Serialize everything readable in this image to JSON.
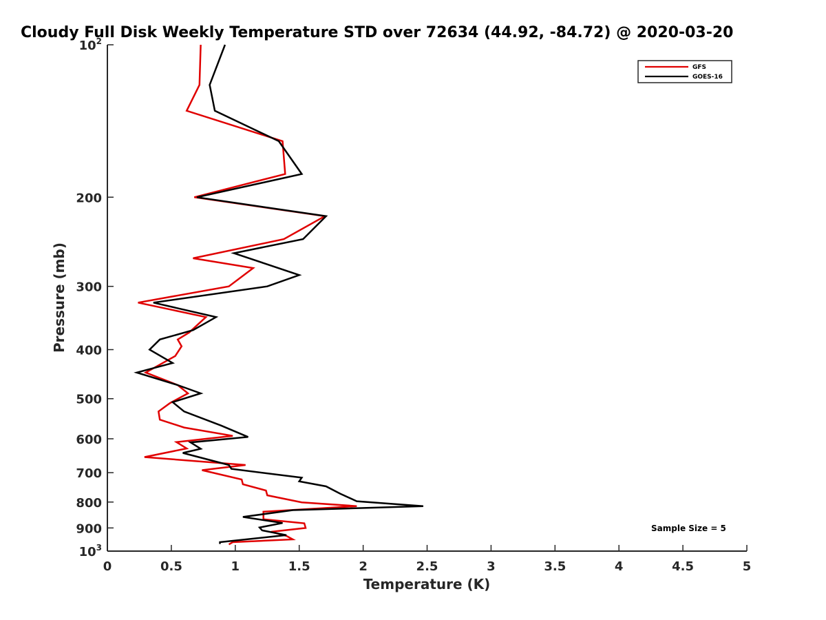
{
  "chart_data": {
    "type": "line",
    "title": "Cloudy Full Disk Weekly Temperature STD over 72634 (44.92, -84.72) @ 2020-03-20",
    "xlabel": "Temperature (K)",
    "ylabel": "Pressure (mb)",
    "xlim": [
      0,
      5
    ],
    "ylim": [
      100,
      1000
    ],
    "y_scale": "log",
    "y_reversed": true,
    "xticks": [
      0,
      0.5,
      1,
      1.5,
      2,
      2.5,
      3,
      3.5,
      4,
      4.5,
      5
    ],
    "xtick_labels": [
      "0",
      "0.5",
      "1",
      "1.5",
      "2",
      "2.5",
      "3",
      "3.5",
      "4",
      "4.5",
      "5"
    ],
    "yticks": [
      {
        "value": 100,
        "base": "10",
        "exp": "2"
      },
      {
        "value": 200,
        "label": "200"
      },
      {
        "value": 300,
        "label": "300"
      },
      {
        "value": 400,
        "label": "400"
      },
      {
        "value": 500,
        "label": "500"
      },
      {
        "value": 600,
        "label": "600"
      },
      {
        "value": 700,
        "label": "700"
      },
      {
        "value": 800,
        "label": "800"
      },
      {
        "value": 900,
        "label": "900"
      },
      {
        "value": 1000,
        "base": "10",
        "exp": "3"
      }
    ],
    "grid": false,
    "legend_position": "top-right",
    "annotation": "Sample Size = 5",
    "series": [
      {
        "name": "GFS",
        "color": "#e00000",
        "points": [
          [
            0.73,
            100
          ],
          [
            0.72,
            120
          ],
          [
            0.62,
            135
          ],
          [
            1.37,
            155
          ],
          [
            1.39,
            180
          ],
          [
            0.68,
            200
          ],
          [
            1.7,
            218
          ],
          [
            1.38,
            242
          ],
          [
            0.67,
            264
          ],
          [
            1.14,
            276
          ],
          [
            0.95,
            300
          ],
          [
            0.24,
            323
          ],
          [
            0.77,
            345
          ],
          [
            0.64,
            370
          ],
          [
            0.55,
            382
          ],
          [
            0.58,
            394
          ],
          [
            0.53,
            412
          ],
          [
            0.3,
            444
          ],
          [
            0.55,
            470
          ],
          [
            0.63,
            488
          ],
          [
            0.49,
            510
          ],
          [
            0.4,
            530
          ],
          [
            0.41,
            550
          ],
          [
            0.6,
            570
          ],
          [
            0.98,
            592
          ],
          [
            0.54,
            609
          ],
          [
            0.62,
            627
          ],
          [
            0.29,
            652
          ],
          [
            1.08,
            676
          ],
          [
            0.74,
            692
          ],
          [
            1.05,
            722
          ],
          [
            1.06,
            738
          ],
          [
            1.24,
            759
          ],
          [
            1.25,
            776
          ],
          [
            1.52,
            801
          ],
          [
            1.95,
            815
          ],
          [
            1.22,
            836
          ],
          [
            1.22,
            865
          ],
          [
            1.54,
            881
          ],
          [
            1.55,
            900
          ],
          [
            1.28,
            916
          ],
          [
            1.4,
            933
          ],
          [
            1.45,
            948
          ],
          [
            0.98,
            960
          ],
          [
            0.95,
            970
          ]
        ]
      },
      {
        "name": "GOES-16",
        "color": "#000000",
        "points": [
          [
            0.92,
            100
          ],
          [
            0.8,
            120
          ],
          [
            0.84,
            135
          ],
          [
            1.34,
            155
          ],
          [
            1.52,
            180
          ],
          [
            0.7,
            200
          ],
          [
            1.71,
            218
          ],
          [
            1.53,
            242
          ],
          [
            0.99,
            258
          ],
          [
            1.5,
            285
          ],
          [
            1.25,
            300
          ],
          [
            0.36,
            323
          ],
          [
            0.85,
            345
          ],
          [
            0.67,
            366
          ],
          [
            0.41,
            382
          ],
          [
            0.33,
            400
          ],
          [
            0.51,
            425
          ],
          [
            0.23,
            444
          ],
          [
            0.55,
            470
          ],
          [
            0.73,
            488
          ],
          [
            0.51,
            508
          ],
          [
            0.6,
            530
          ],
          [
            0.89,
            565
          ],
          [
            1.1,
            595
          ],
          [
            0.65,
            610
          ],
          [
            0.73,
            628
          ],
          [
            0.59,
            640
          ],
          [
            0.95,
            676
          ],
          [
            0.97,
            688
          ],
          [
            1.52,
            716
          ],
          [
            1.5,
            728
          ],
          [
            1.71,
            745
          ],
          [
            1.82,
            770
          ],
          [
            1.95,
            797
          ],
          [
            2.47,
            815
          ],
          [
            1.45,
            830
          ],
          [
            1.06,
            856
          ],
          [
            1.37,
            880
          ],
          [
            1.19,
            898
          ],
          [
            1.21,
            910
          ],
          [
            1.4,
            930
          ],
          [
            0.88,
            960
          ],
          [
            0.88,
            968
          ]
        ]
      }
    ]
  }
}
